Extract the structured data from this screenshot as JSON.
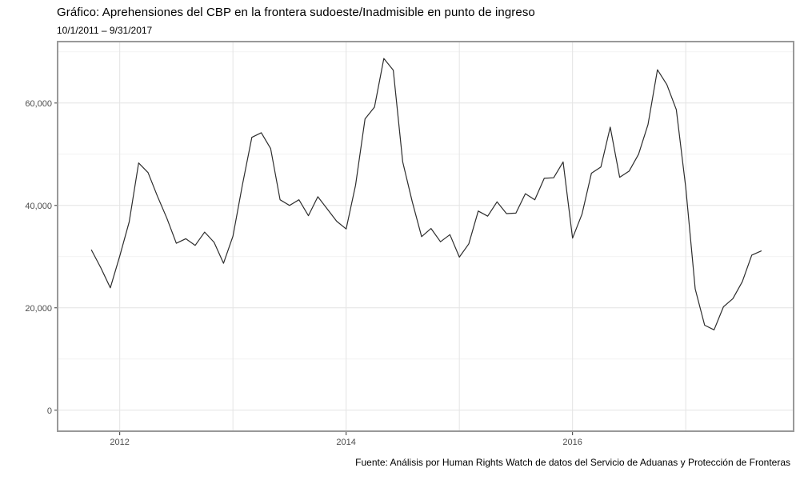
{
  "page": {
    "background": "#ffffff"
  },
  "header": {
    "title": "Gráfico: Aprehensiones del CBP en la frontera sudoeste/Inadmisible en punto de ingreso",
    "subtitle": "10/1/2011 – 9/31/2017"
  },
  "footer": {
    "caption": "Fuente: Análisis por Human Rights Watch de datos del Servicio de Aduanas y Protección de Fronteras"
  },
  "chart_data": {
    "type": "line",
    "title": "Gráfico: Aprehensiones del CBP en la frontera sudoeste/Inadmisible en punto de ingreso",
    "subtitle": "10/1/2011 – 9/31/2017",
    "caption": "Fuente: Análisis por Human Rights Watch de datos del Servicio de Aduanas y Protección de Fronteras",
    "xlabel": "",
    "ylabel": "",
    "legend": "none",
    "grid": true,
    "ylim": [
      -4100,
      72000
    ],
    "months": [
      "2011-10",
      "2011-11",
      "2011-12",
      "2012-01",
      "2012-02",
      "2012-03",
      "2012-04",
      "2012-05",
      "2012-06",
      "2012-07",
      "2012-08",
      "2012-09",
      "2012-10",
      "2012-11",
      "2012-12",
      "2013-01",
      "2013-02",
      "2013-03",
      "2013-04",
      "2013-05",
      "2013-06",
      "2013-07",
      "2013-08",
      "2013-09",
      "2013-10",
      "2013-11",
      "2013-12",
      "2014-01",
      "2014-02",
      "2014-03",
      "2014-04",
      "2014-05",
      "2014-06",
      "2014-07",
      "2014-08",
      "2014-09",
      "2014-10",
      "2014-11",
      "2014-12",
      "2015-01",
      "2015-02",
      "2015-03",
      "2015-04",
      "2015-05",
      "2015-06",
      "2015-07",
      "2015-08",
      "2015-09",
      "2015-10",
      "2015-11",
      "2015-12",
      "2016-01",
      "2016-02",
      "2016-03",
      "2016-04",
      "2016-05",
      "2016-06",
      "2016-07",
      "2016-08",
      "2016-09",
      "2016-10",
      "2016-11",
      "2016-12",
      "2017-01",
      "2017-02",
      "2017-03",
      "2017-04",
      "2017-05",
      "2017-06",
      "2017-07",
      "2017-08",
      "2017-09"
    ],
    "values": [
      31300,
      27800,
      23900,
      30100,
      36800,
      48300,
      46400,
      41800,
      37500,
      32600,
      33500,
      32200,
      34800,
      32800,
      28700,
      34000,
      44000,
      53300,
      54200,
      51100,
      41100,
      40000,
      41100,
      38000,
      41700,
      39300,
      36900,
      35400,
      44000,
      56900,
      59200,
      68700,
      66400,
      48500,
      40800,
      33900,
      35500,
      32900,
      34300,
      29900,
      32500,
      38900,
      37900,
      40700,
      38400,
      38500,
      42300,
      41100,
      45300,
      45400,
      48500,
      33600,
      38300,
      46300,
      47500,
      55300,
      45500,
      46700,
      50000,
      55800,
      66500,
      63600,
      58700,
      43500,
      23700,
      16600,
      15700,
      20200,
      21800,
      25100,
      30300,
      31100
    ],
    "y_major_gridlines": [
      0,
      20000,
      40000,
      60000
    ],
    "y_minor_gridlines": [
      10000,
      30000,
      50000,
      70000
    ],
    "y_ticks": [
      {
        "value": 0,
        "label": "0"
      },
      {
        "value": 20000,
        "label": "20,000"
      },
      {
        "value": 40000,
        "label": "40,000"
      },
      {
        "value": 60000,
        "label": "60,000"
      }
    ],
    "x_gridlines": [
      "2012-01",
      "2013-01",
      "2014-01",
      "2015-01",
      "2016-01",
      "2017-01"
    ],
    "x_ticks": [
      {
        "month": "2012-01",
        "label": "2012"
      },
      {
        "month": "2014-01",
        "label": "2014"
      },
      {
        "month": "2016-01",
        "label": "2016"
      }
    ],
    "colors": {
      "line": "#2d2d2d",
      "grid_major": "#e4e4e4",
      "grid_minor": "#f2f2f2",
      "panel_border": "#999999",
      "tick_mark": "#333333",
      "axis_text": "#4d4d4d",
      "text": "#000000",
      "panel_background": "#ffffff"
    }
  }
}
